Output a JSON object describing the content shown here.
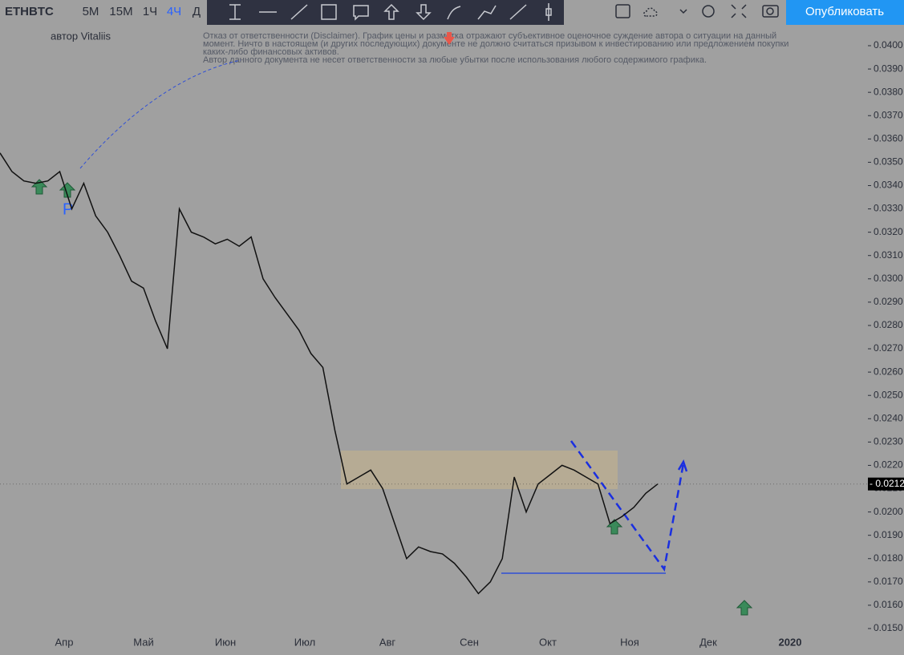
{
  "toolbar": {
    "symbol": "ETHBTC",
    "intervals": [
      "5M",
      "15M",
      "1Ч",
      "4Ч",
      "Д"
    ],
    "active_interval": 3,
    "publish": "Опубликовать"
  },
  "chart": {
    "author": "автор Vitaliis",
    "disclaimer": [
      "Отказ от ответственности (Disclaimer). График цены и разметка отражают субъективное оценочное суждение автора о ситуации на данный",
      "момент. Ничто в настоящем (и других последующих) документе не должно считаться призывом к инвестированию или предложением покупки",
      "каких-либо финансовых активов.",
      "Автор данного документа не несет ответственности за любые убытки после использования любого содержимого графика."
    ],
    "ylim": [
      0.015,
      0.04
    ],
    "yticks": [
      {
        "value": 0.04,
        "label": "0.0400"
      },
      {
        "value": 0.039,
        "label": "0.0390"
      },
      {
        "value": 0.038,
        "label": "0.0380"
      },
      {
        "value": 0.037,
        "label": "0.0370"
      },
      {
        "value": 0.036,
        "label": "0.0360"
      },
      {
        "value": 0.035,
        "label": "0.0350"
      },
      {
        "value": 0.034,
        "label": "0.0340"
      },
      {
        "value": 0.033,
        "label": "0.0330"
      },
      {
        "value": 0.032,
        "label": "0.0320"
      },
      {
        "value": 0.031,
        "label": "0.0310"
      },
      {
        "value": 0.03,
        "label": "0.0300"
      },
      {
        "value": 0.029,
        "label": "0.0290"
      },
      {
        "value": 0.028,
        "label": "0.0280"
      },
      {
        "value": 0.027,
        "label": "0.0270"
      },
      {
        "value": 0.026,
        "label": "0.0260"
      },
      {
        "value": 0.025,
        "label": "0.0250"
      },
      {
        "value": 0.024,
        "label": "0.0240"
      },
      {
        "value": 0.023,
        "label": "0.0230"
      },
      {
        "value": 0.022,
        "label": "0.0220"
      },
      {
        "value": 0.021,
        "label": "0.0210"
      },
      {
        "value": 0.02,
        "label": "0.0200"
      },
      {
        "value": 0.019,
        "label": "0.0190"
      },
      {
        "value": 0.018,
        "label": "0.0180"
      },
      {
        "value": 0.017,
        "label": "0.0170"
      },
      {
        "value": 0.016,
        "label": "0.0160"
      },
      {
        "value": 0.015,
        "label": "0.0150"
      }
    ],
    "months": [
      "Апр",
      "Май",
      "Июн",
      "Июл",
      "Авг",
      "Сен",
      "Окт",
      "Ноя",
      "Дек",
      "2020"
    ],
    "price": [
      0.0354,
      0.0346,
      0.0342,
      0.0341,
      0.0342,
      0.0346,
      0.033,
      0.0341,
      0.0327,
      0.032,
      0.031,
      0.0299,
      0.0296,
      0.0282,
      0.027,
      0.033,
      0.032,
      0.0318,
      0.0315,
      0.0317,
      0.0314,
      0.0318,
      0.03,
      0.0292,
      0.0285,
      0.0278,
      0.0268,
      0.0262,
      0.0235,
      0.0212,
      0.0215,
      0.0218,
      0.021,
      0.0195,
      0.018,
      0.0185,
      0.0183,
      0.0182,
      0.0178,
      0.0172,
      0.0165,
      0.017,
      0.018,
      0.0215,
      0.02,
      0.0212,
      0.0216,
      0.022,
      0.0218,
      0.0215,
      0.0212,
      0.0195,
      0.0198,
      0.0202,
      0.0208,
      0.0212
    ],
    "last_price": {
      "value": 0.0212,
      "label": "- 0.0212"
    }
  }
}
